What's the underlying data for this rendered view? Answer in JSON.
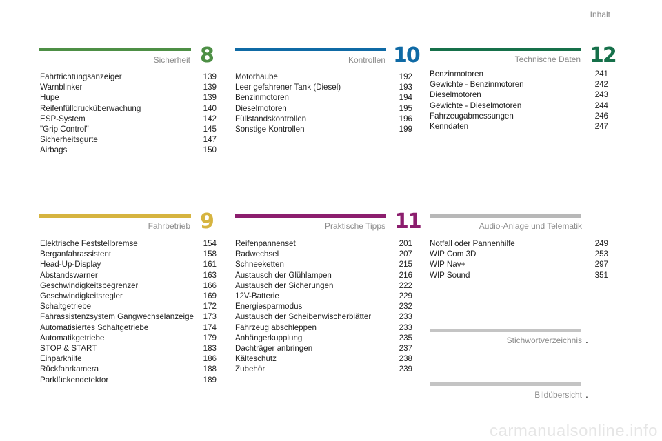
{
  "header": {
    "title": "Inhalt"
  },
  "watermark": "carmanualsonline.info",
  "colors": {
    "green": "#4d8f45",
    "blue": "#0f6aa5",
    "darkgreen": "#16704a",
    "yellow": "#d6b440",
    "purple": "#8c1e6e",
    "gray": "#b8b8b8"
  },
  "sections": {
    "s8": {
      "title": "Sicherheit",
      "number": "8",
      "items": [
        {
          "label": "Fahrtrichtungsanzeiger",
          "page": "139"
        },
        {
          "label": "Warnblinker",
          "page": "139"
        },
        {
          "label": "Hupe",
          "page": "139"
        },
        {
          "label": "Reifenfülldrucküberwachung",
          "page": "140"
        },
        {
          "label": "ESP-System",
          "page": "142"
        },
        {
          "label": "\"Grip Control\"",
          "page": "145"
        },
        {
          "label": "Sicherheitsgurte",
          "page": "147"
        },
        {
          "label": "Airbags",
          "page": "150"
        }
      ]
    },
    "s10": {
      "title": "Kontrollen",
      "number": "10",
      "items": [
        {
          "label": "Motorhaube",
          "page": "192"
        },
        {
          "label": "Leer gefahrener Tank (Diesel)",
          "page": "193"
        },
        {
          "label": "Benzinmotoren",
          "page": "194"
        },
        {
          "label": "Dieselmotoren",
          "page": "195"
        },
        {
          "label": "Füllstandskontrollen",
          "page": "196"
        },
        {
          "label": "Sonstige Kontrollen",
          "page": "199"
        }
      ]
    },
    "s12": {
      "title": "Technische Daten",
      "number": "12",
      "items": [
        {
          "label": "Benzinmotoren",
          "page": "241"
        },
        {
          "label": "Gewichte - Benzinmotoren",
          "page": "242"
        },
        {
          "label": "Dieselmotoren",
          "page": "243"
        },
        {
          "label": "Gewichte - Dieselmotoren",
          "page": "244"
        },
        {
          "label": "Fahrzeugabmessungen",
          "page": "246"
        },
        {
          "label": "Kenndaten",
          "page": "247"
        }
      ]
    },
    "s9": {
      "title": "Fahrbetrieb",
      "number": "9",
      "items": [
        {
          "label": "Elektrische Feststellbremse",
          "page": "154"
        },
        {
          "label": "Berganfahrassistent",
          "page": "158"
        },
        {
          "label": "Head-Up-Display",
          "page": "161"
        },
        {
          "label": "Abstandswarner",
          "page": "163"
        },
        {
          "label": "Geschwindigkeitsbegrenzer",
          "page": "166"
        },
        {
          "label": "Geschwindigkeitsregler",
          "page": "169"
        },
        {
          "label": "Schaltgetriebe",
          "page": "172"
        },
        {
          "label": "Fahrassistenzsystem Gangwechselanzeige",
          "page": "173"
        },
        {
          "label": "Automatisiertes Schaltgetriebe",
          "page": "174"
        },
        {
          "label": "Automatikgetriebe",
          "page": "179"
        },
        {
          "label": "STOP & START",
          "page": "183"
        },
        {
          "label": "Einparkhilfe",
          "page": "186"
        },
        {
          "label": "Rückfahrkamera",
          "page": "188"
        },
        {
          "label": "Parklückendetektor",
          "page": "189"
        }
      ]
    },
    "s11": {
      "title": "Praktische Tipps",
      "number": "11",
      "items": [
        {
          "label": "Reifenpannenset",
          "page": "201"
        },
        {
          "label": "Radwechsel",
          "page": "207"
        },
        {
          "label": "Schneeketten",
          "page": "215"
        },
        {
          "label": "Austausch der Glühlampen",
          "page": "216"
        },
        {
          "label": "Austausch der Sicherungen",
          "page": "222"
        },
        {
          "label": "12V-Batterie",
          "page": "229"
        },
        {
          "label": "Energiesparmodus",
          "page": "232"
        },
        {
          "label": "Austausch der Scheibenwischerblätter",
          "page": "233"
        },
        {
          "label": "Fahrzeug abschleppen",
          "page": "233"
        },
        {
          "label": "Anhängerkupplung",
          "page": "235"
        },
        {
          "label": "Dachträger anbringen",
          "page": "237"
        },
        {
          "label": "Kälteschutz",
          "page": "238"
        },
        {
          "label": "Zubehör",
          "page": "239"
        }
      ]
    },
    "audio": {
      "title": "Audio-Anlage und Telematik",
      "items": [
        {
          "label": "Notfall oder Pannenhilfe",
          "page": "249"
        },
        {
          "label": "WIP Com 3D",
          "page": "253"
        },
        {
          "label": "WIP Nav+",
          "page": "297"
        },
        {
          "label": "WIP Sound",
          "page": "351"
        }
      ]
    },
    "index": {
      "title": "Stichwortverzeichnis",
      "dot": "."
    },
    "pictures": {
      "title": "Bildübersicht",
      "dot": "."
    }
  }
}
